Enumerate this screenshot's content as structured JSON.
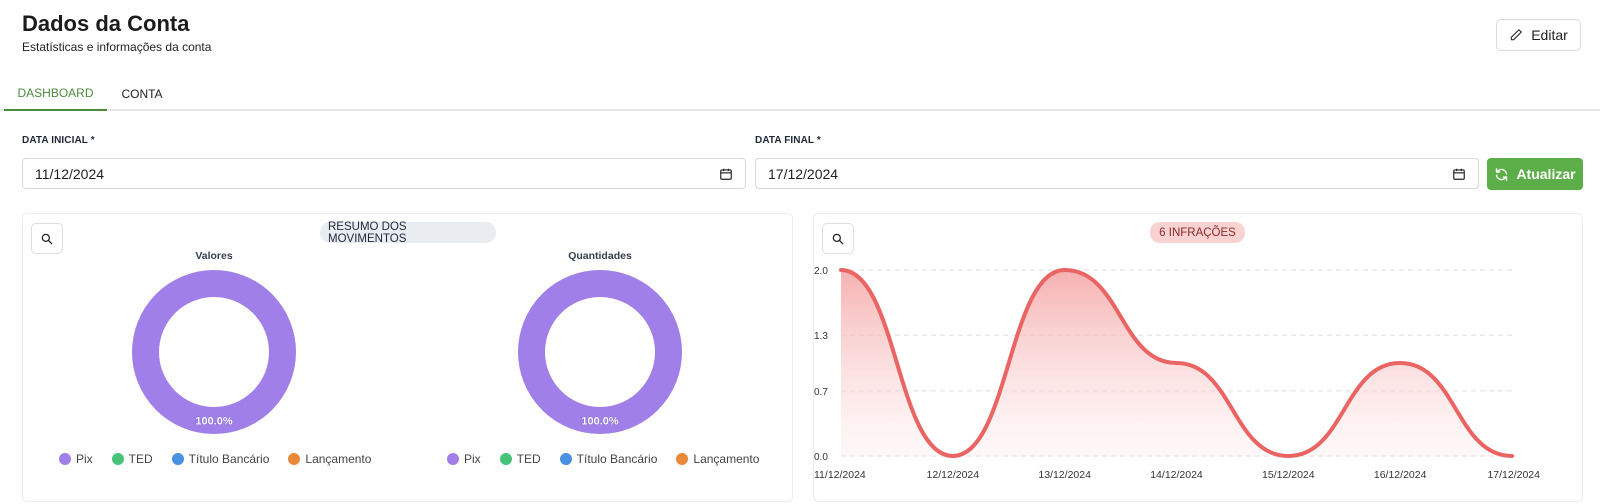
{
  "header": {
    "title": "Dados da Conta",
    "subtitle": "Estatísticas e informações da conta",
    "edit_label": "Editar"
  },
  "tabs": [
    {
      "label": "DASHBOARD",
      "active": true
    },
    {
      "label": "CONTA",
      "active": false
    }
  ],
  "filters": {
    "start_label": "DATA INICIAL *",
    "start_value": "11/12/2024",
    "end_label": "DATA FINAL *",
    "end_value": "17/12/2024",
    "refresh_label": "Atualizar"
  },
  "summary_card": {
    "title": "RESUMO DOS MOVIMENTOS",
    "legend": [
      {
        "label": "Pix",
        "color": "#a07fe8"
      },
      {
        "label": "TED",
        "color": "#48c27b"
      },
      {
        "label": "Título Bancário",
        "color": "#4a90e2"
      },
      {
        "label": "Lançamento",
        "color": "#e8893a"
      }
    ]
  },
  "infractions_card": {
    "title": "6 INFRAÇÕES"
  },
  "colors": {
    "accent_green": "#5cae49",
    "tab_active": "#4a8a3b",
    "line_red": "#ea6464"
  },
  "chart_data": [
    {
      "type": "pie",
      "title": "Valores",
      "categories": [
        "Pix",
        "TED",
        "Título Bancário",
        "Lançamento"
      ],
      "values": [
        100,
        0,
        0,
        0
      ],
      "data_labels": [
        "100.0%"
      ],
      "donut": true,
      "legend_position": "bottom"
    },
    {
      "type": "pie",
      "title": "Quantidades",
      "categories": [
        "Pix",
        "TED",
        "Título Bancário",
        "Lançamento"
      ],
      "values": [
        100,
        0,
        0,
        0
      ],
      "data_labels": [
        "100.0%"
      ],
      "donut": true,
      "legend_position": "bottom"
    },
    {
      "type": "area",
      "title": "6 INFRAÇÕES",
      "categories": [
        "11/12/2024",
        "12/12/2024",
        "13/12/2024",
        "14/12/2024",
        "15/12/2024",
        "16/12/2024",
        "17/12/2024"
      ],
      "values": [
        2,
        0,
        2,
        1,
        0,
        1,
        0
      ],
      "ylim": [
        0,
        2
      ],
      "y_ticks": [
        "0.0",
        "0.7",
        "1.3",
        "2.0"
      ],
      "grid": true,
      "line_color": "#ea6464"
    }
  ]
}
